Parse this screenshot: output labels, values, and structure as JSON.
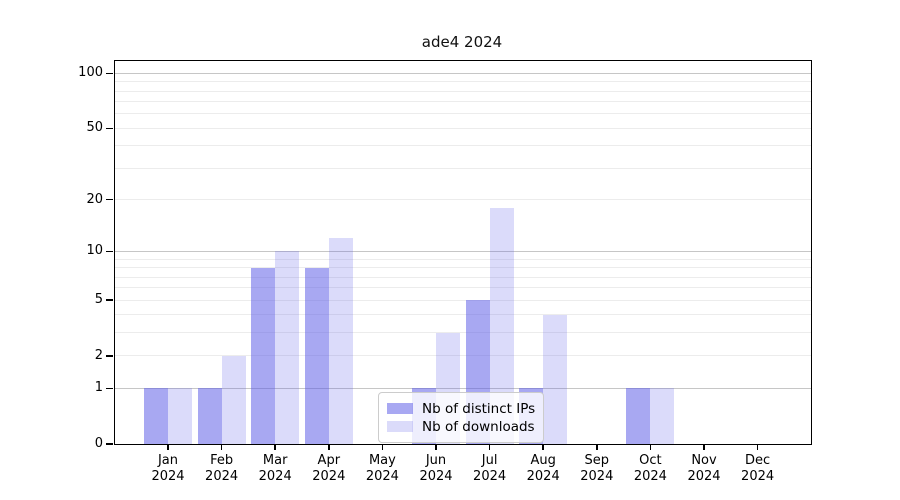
{
  "chart_data": {
    "type": "bar",
    "title": "ade4 2024",
    "categories": [
      "Jan",
      "Feb",
      "Mar",
      "Apr",
      "May",
      "Jun",
      "Jul",
      "Aug",
      "Sep",
      "Oct",
      "Nov",
      "Dec"
    ],
    "tick_year": "2024",
    "series": [
      {
        "name": "Nb of distinct IPs",
        "color": "rgba(90,90,230,0.53)",
        "values": [
          1,
          1,
          8,
          8,
          0,
          1,
          5,
          1,
          0,
          1,
          0,
          0
        ]
      },
      {
        "name": "Nb of downloads",
        "color": "rgba(90,90,230,0.22)",
        "values": [
          1,
          2,
          10,
          12,
          0,
          3,
          18,
          4,
          0,
          1,
          0,
          0
        ]
      }
    ],
    "xlabel": "",
    "ylabel": "",
    "yscale": "log1p",
    "ylim": [
      0,
      117
    ],
    "yticks": [
      0,
      1,
      2,
      5,
      10,
      20,
      50,
      100
    ],
    "gridlines_minor": [
      2,
      3,
      4,
      5,
      6,
      7,
      8,
      9,
      20,
      30,
      40,
      50,
      60,
      70,
      80,
      90
    ],
    "gridlines_major": [
      1,
      10,
      100
    ],
    "grid": true,
    "legend_position": "lower center",
    "colors": {
      "background": "#ffffff",
      "bar_dark": "rgba(90,90,230,0.53)",
      "bar_light": "rgba(90,90,230,0.22)",
      "grid_minor": "#ececec",
      "grid_major": "#c6c6c6",
      "axis": "#000000",
      "text": "#111111",
      "legend_border": "#cccccc",
      "legend_bg": "rgba(255,255,255,0.8)"
    }
  }
}
